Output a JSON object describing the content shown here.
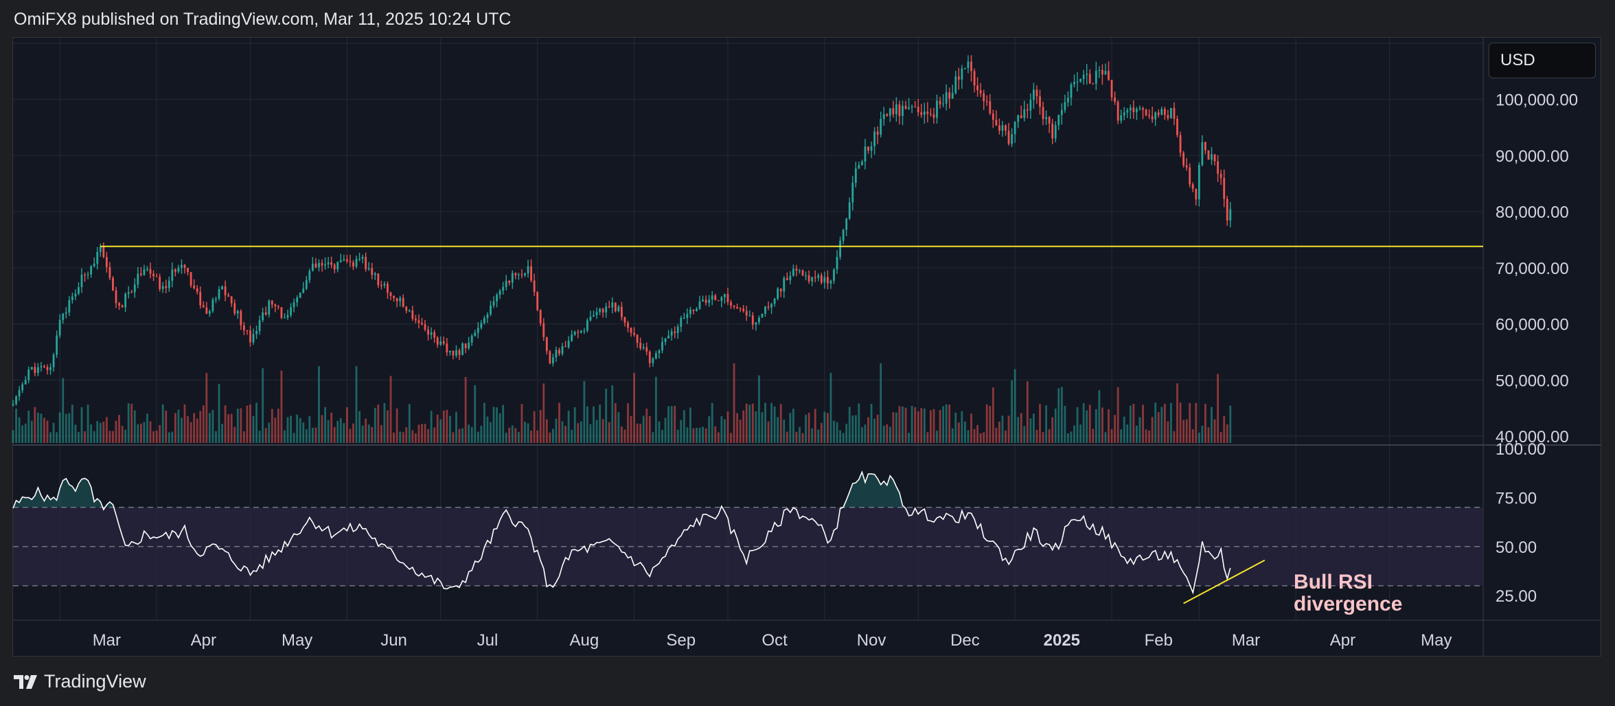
{
  "header": {
    "attribution": "OmiFX8 published on TradingView.com, Mar 11, 2025 10:24 UTC"
  },
  "toolbar": {
    "currency": "USD"
  },
  "footer": {
    "brand": "TradingView"
  },
  "colors": {
    "background": "#131722",
    "grid": "#262a33",
    "up": "#26a69a",
    "down": "#ef5350",
    "level_line": "#f5e52a",
    "rsi_line": "#ffffff",
    "rsi_band": "#2a2540",
    "annotation": "#f9c4c8"
  },
  "chart_data": [
    {
      "type": "candlestick",
      "ylim": [
        40000,
        110000
      ],
      "y_ticks": [
        "100,000.00",
        "90,000.00",
        "80,000.00",
        "70,000.00",
        "60,000.00",
        "50,000.00",
        "40,000.00"
      ],
      "x_ticks": [
        "Mar",
        "Apr",
        "May",
        "Jun",
        "Jul",
        "Aug",
        "Sep",
        "Oct",
        "Nov",
        "Dec",
        "2025",
        "Feb",
        "Mar",
        "Apr",
        "May"
      ],
      "x_range": [
        "2024-02-15",
        "2025-05-31"
      ],
      "horizontal_level": 73800,
      "level_start": "2024-03-14",
      "price_path": [
        [
          "2024-02-15",
          45500
        ],
        [
          "2024-02-20",
          51800
        ],
        [
          "2024-02-27",
          52000
        ],
        [
          "2024-03-01",
          61000
        ],
        [
          "2024-03-05",
          64500
        ],
        [
          "2024-03-09",
          69000
        ],
        [
          "2024-03-14",
          73000
        ],
        [
          "2024-03-20",
          62500
        ],
        [
          "2024-03-28",
          70500
        ],
        [
          "2024-04-03",
          66000
        ],
        [
          "2024-04-09",
          71500
        ],
        [
          "2024-04-17",
          61500
        ],
        [
          "2024-04-22",
          66500
        ],
        [
          "2024-05-01",
          57500
        ],
        [
          "2024-05-07",
          63500
        ],
        [
          "2024-05-13",
          61000
        ],
        [
          "2024-05-21",
          70000
        ],
        [
          "2024-06-06",
          71000
        ],
        [
          "2024-06-12",
          67000
        ],
        [
          "2024-06-24",
          60500
        ],
        [
          "2024-07-05",
          54000
        ],
        [
          "2024-07-14",
          59500
        ],
        [
          "2024-07-22",
          68000
        ],
        [
          "2024-07-29",
          69500
        ],
        [
          "2024-08-05",
          53500
        ],
        [
          "2024-08-15",
          59000
        ],
        [
          "2024-08-25",
          64000
        ],
        [
          "2024-09-06",
          53500
        ],
        [
          "2024-09-20",
          63000
        ],
        [
          "2024-09-29",
          65000
        ],
        [
          "2024-10-10",
          60000
        ],
        [
          "2024-10-21",
          69000
        ],
        [
          "2024-11-03",
          68000
        ],
        [
          "2024-11-06",
          75000
        ],
        [
          "2024-11-12",
          89000
        ],
        [
          "2024-11-22",
          98500
        ],
        [
          "2024-12-05",
          97000
        ],
        [
          "2024-12-17",
          106000
        ],
        [
          "2024-12-30",
          92500
        ],
        [
          "2025-01-07",
          101500
        ],
        [
          "2025-01-13",
          93000
        ],
        [
          "2025-01-20",
          104500
        ],
        [
          "2025-01-30",
          104000
        ],
        [
          "2025-02-03",
          97000
        ],
        [
          "2025-02-20",
          98000
        ],
        [
          "2025-02-25",
          87000
        ],
        [
          "2025-02-28",
          83000
        ],
        [
          "2025-03-02",
          92000
        ],
        [
          "2025-03-05",
          89000
        ],
        [
          "2025-03-08",
          86000
        ],
        [
          "2025-03-10",
          78500
        ],
        [
          "2025-03-11",
          81000
        ]
      ]
    },
    {
      "type": "line",
      "indicator": "RSI",
      "ylim": [
        10,
        100
      ],
      "y_ticks": [
        "100.00",
        "75.00",
        "50.00",
        "25.00"
      ],
      "band": [
        30,
        70
      ],
      "midline": 50,
      "rsi_path": [
        [
          "2024-02-15",
          70
        ],
        [
          "2024-02-22",
          78
        ],
        [
          "2024-02-28",
          73
        ],
        [
          "2024-03-03",
          85
        ],
        [
          "2024-03-06",
          80
        ],
        [
          "2024-03-10",
          84
        ],
        [
          "2024-03-12",
          72
        ],
        [
          "2024-03-18",
          70
        ],
        [
          "2024-03-22",
          48
        ],
        [
          "2024-03-28",
          56
        ],
        [
          "2024-04-04",
          55
        ],
        [
          "2024-04-10",
          58
        ],
        [
          "2024-04-14",
          47
        ],
        [
          "2024-04-20",
          50
        ],
        [
          "2024-05-01",
          36
        ],
        [
          "2024-05-10",
          48
        ],
        [
          "2024-05-20",
          64
        ],
        [
          "2024-05-27",
          57
        ],
        [
          "2024-06-06",
          60
        ],
        [
          "2024-06-12",
          50
        ],
        [
          "2024-06-24",
          37
        ],
        [
          "2024-07-05",
          27
        ],
        [
          "2024-07-12",
          40
        ],
        [
          "2024-07-22",
          67
        ],
        [
          "2024-07-29",
          58
        ],
        [
          "2024-08-05",
          28
        ],
        [
          "2024-08-12",
          47
        ],
        [
          "2024-08-25",
          52
        ],
        [
          "2024-09-06",
          36
        ],
        [
          "2024-09-20",
          62
        ],
        [
          "2024-09-29",
          68
        ],
        [
          "2024-10-07",
          44
        ],
        [
          "2024-10-14",
          55
        ],
        [
          "2024-10-21",
          70
        ],
        [
          "2024-10-29",
          62
        ],
        [
          "2024-11-03",
          53
        ],
        [
          "2024-11-08",
          76
        ],
        [
          "2024-11-13",
          85
        ],
        [
          "2024-11-22",
          84
        ],
        [
          "2024-11-28",
          68
        ],
        [
          "2024-12-10",
          64
        ],
        [
          "2024-12-17",
          66
        ],
        [
          "2024-12-30",
          42
        ],
        [
          "2025-01-07",
          58
        ],
        [
          "2025-01-13",
          46
        ],
        [
          "2025-01-20",
          66
        ],
        [
          "2025-01-30",
          56
        ],
        [
          "2025-02-05",
          43
        ],
        [
          "2025-02-20",
          46
        ],
        [
          "2025-02-24",
          35
        ],
        [
          "2025-02-27",
          25
        ],
        [
          "2025-03-02",
          52
        ],
        [
          "2025-03-05",
          44
        ],
        [
          "2025-03-08",
          48
        ],
        [
          "2025-03-10",
          34
        ],
        [
          "2025-03-11",
          38
        ]
      ],
      "trendline": [
        [
          "2025-02-24",
          21
        ],
        [
          "2025-03-22",
          43
        ]
      ],
      "annotation_lines": [
        "Bull RSI",
        "divergence"
      ]
    }
  ]
}
